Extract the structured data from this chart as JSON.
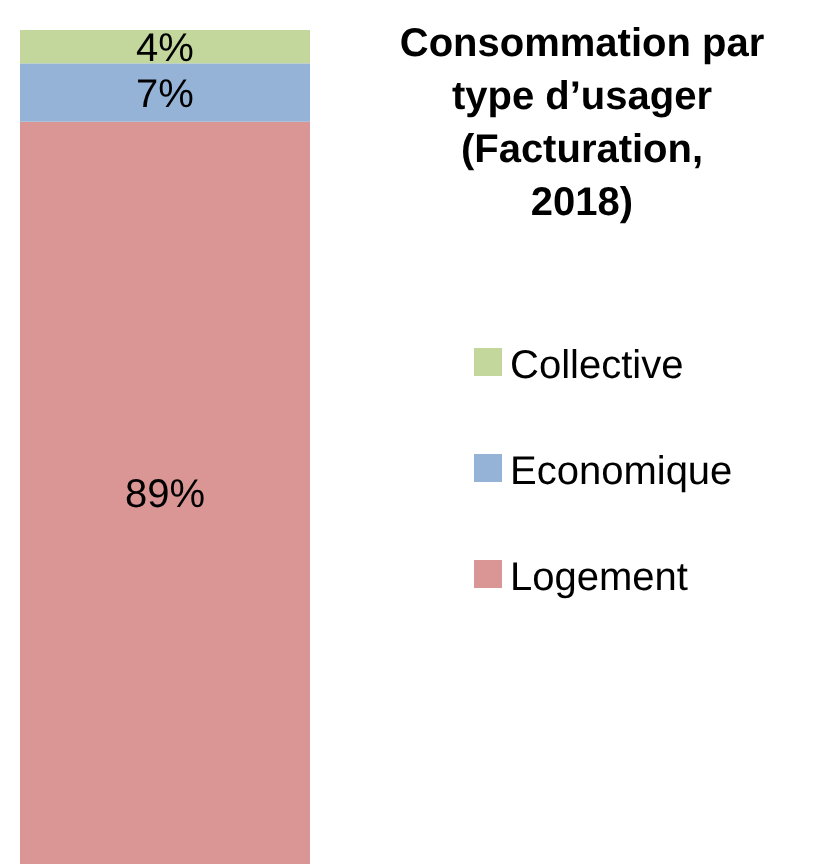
{
  "chart_data": {
    "type": "bar",
    "stacked": true,
    "title": "Consommation par type d’usager (Facturation, 2018)",
    "categories": [
      null
    ],
    "legend": "right",
    "series": [
      {
        "name": "Logement",
        "color": "#d99694",
        "values": [
          89
        ],
        "value_labels": [
          "89%"
        ]
      },
      {
        "name": "Economique",
        "color": "#95b3d7",
        "values": [
          7
        ],
        "value_labels": [
          "7%"
        ]
      },
      {
        "name": "Collective",
        "color": "#c3d69b",
        "values": [
          4
        ],
        "value_labels": [
          "4%"
        ]
      }
    ]
  }
}
